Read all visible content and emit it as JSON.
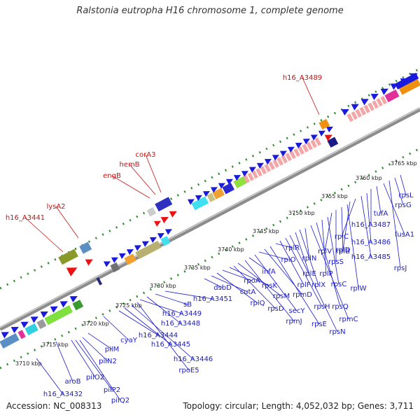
{
  "title": "Ralstonia eutropha H16 chromosome 1, complete genome",
  "footer": {
    "accession": "Accession: NC_008313",
    "stats": "Topology: circular; Length: 4,052,032 bp; Genes: 3,711"
  },
  "colors": {
    "backbone": "#8c8c8c",
    "tick": "#2e8b2e",
    "label_blue": "#1a1acc",
    "label_red": "#cc1111",
    "gene_blue": "#1a1add",
    "ribosomal_pink": "#f2a6a6"
  },
  "scale_labels": [
    "3710 kbp",
    "3715 kbp",
    "3720 kbp",
    "3725 kbp",
    "3730 kbp",
    "3735 kbp",
    "3740 kbp",
    "3745 kbp",
    "3750 kbp",
    "3755 kbp",
    "3760 kbp",
    "3765 kbp"
  ],
  "red_labels": [
    "h16_A3441",
    "lysA2",
    "engB",
    "hemB",
    "corA3",
    "h16_A3489"
  ],
  "blue_labels": [
    "h16_A3432",
    "aroB",
    "pilO2",
    "pilP2",
    "pilQ2",
    "pilN2",
    "pilM",
    "cyaY",
    "h16_A3444",
    "h16_A3445",
    "h16_A3446",
    "rpoE5",
    "h16_A3449",
    "h16_A3448",
    "sB",
    "h16_A3451",
    "dsbD",
    "cutA",
    "rplQ",
    "rpoA",
    "rpsK",
    "rpsD",
    "rpsM",
    "rpmJ",
    "infA",
    "secY",
    "rplO",
    "rpmD",
    "rpsE",
    "rplR",
    "rplF",
    "rpsH",
    "rpsN",
    "rplE",
    "rplX",
    "rplN",
    "rpmC",
    "rpsQ",
    "rplP",
    "rpsC",
    "rplV",
    "rpsS",
    "rplB",
    "rplW",
    "rplD",
    "rplC",
    "h16_A3485",
    "h16_A3486",
    "h16_A3487",
    "tufA",
    "fusA1",
    "rpsJ",
    "rpsG",
    "rpsL"
  ]
}
